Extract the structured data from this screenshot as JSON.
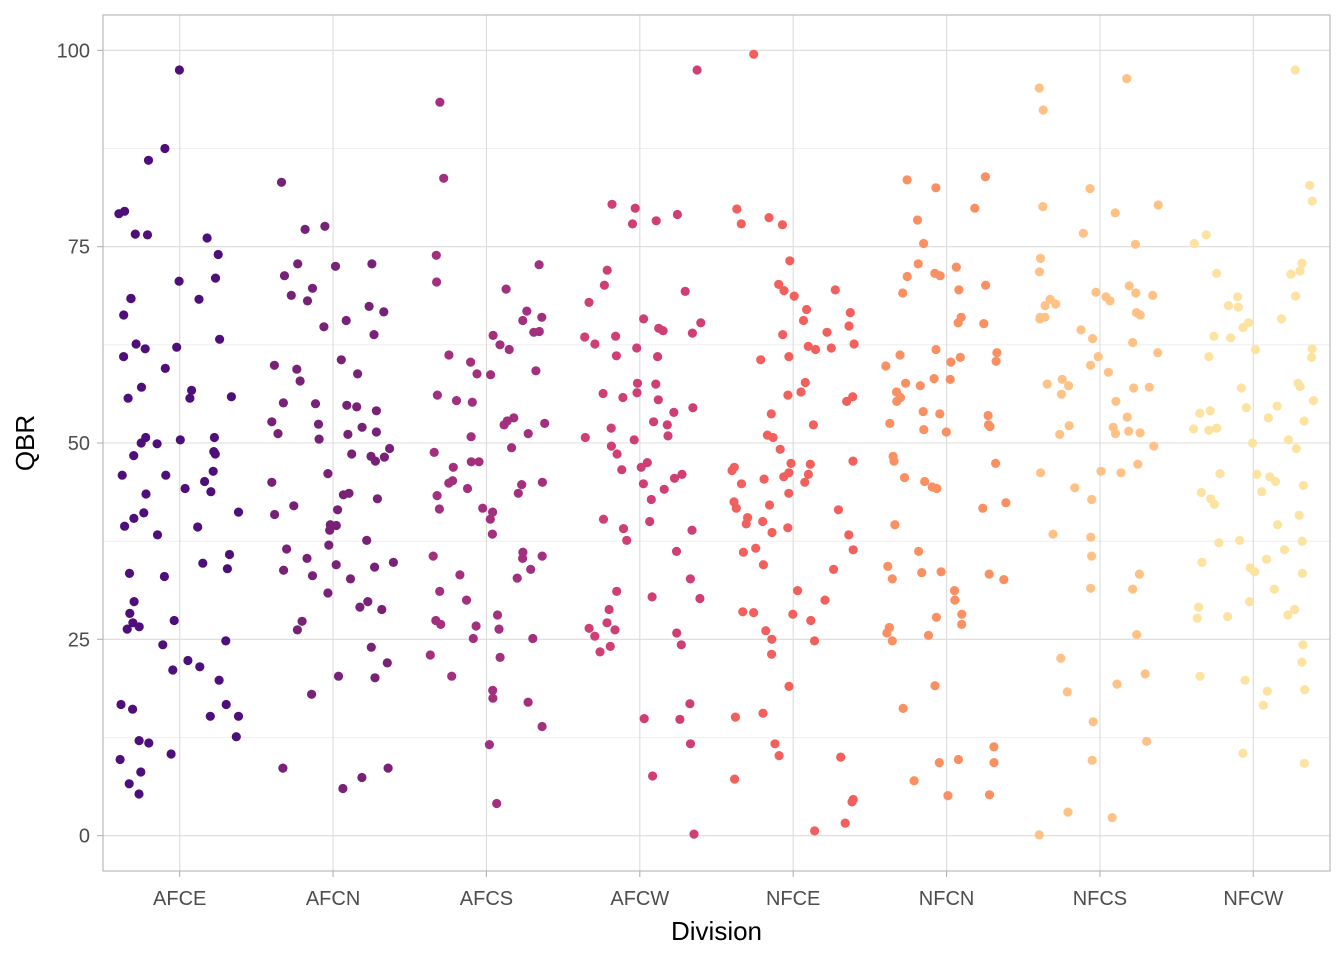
{
  "chart_data": {
    "type": "scatter",
    "jitter": true,
    "title": "",
    "xlabel": "Division",
    "ylabel": "QBR",
    "categories": [
      "AFCE",
      "AFCN",
      "AFCS",
      "AFCW",
      "NFCE",
      "NFCN",
      "NFCS",
      "NFCW"
    ],
    "colors": [
      "#4f0f7b",
      "#772277",
      "#a3307e",
      "#cf3f76",
      "#f1605d",
      "#fa8f61",
      "#fec287",
      "#fde3a1"
    ],
    "ylim": [
      -4.5,
      104.5
    ],
    "yticks": [
      0,
      25,
      50,
      75,
      100
    ],
    "grid": true,
    "legend": "none",
    "series": [
      {
        "values": [
          97.5,
          87.5,
          86.0,
          79.5,
          79.2,
          76.6,
          76.1,
          76.5,
          74.0,
          71.0,
          70.6,
          68.4,
          68.4,
          68.3,
          66.3,
          63.2,
          62.6,
          62.2,
          62.0,
          61.0,
          59.5,
          57.1,
          56.7,
          55.9,
          55.7,
          55.7,
          50.7,
          50.7,
          50.4,
          50.0,
          49.9,
          48.9,
          48.6,
          48.4,
          46.4,
          45.9,
          45.9,
          45.1,
          44.2,
          43.8,
          43.5,
          41.2,
          41.1,
          40.4,
          39.4,
          39.3,
          38.3,
          35.8,
          34.7,
          34.0,
          33.0,
          33.4,
          29.8,
          28.3,
          27.4,
          27.1,
          26.6,
          26.3,
          24.8,
          24.3,
          22.3,
          21.5,
          21.1,
          19.8,
          16.7,
          16.7,
          16.1,
          15.2,
          15.2,
          12.6,
          12.1,
          11.8,
          10.4,
          9.7,
          8.1,
          6.6,
          5.3
        ]
      },
      {
        "values": [
          83.2,
          77.6,
          77.2,
          72.8,
          72.8,
          72.5,
          71.3,
          69.7,
          68.8,
          68.1,
          67.4,
          66.7,
          65.6,
          64.8,
          63.8,
          60.6,
          59.9,
          59.4,
          58.8,
          57.9,
          55.1,
          55.0,
          54.8,
          54.6,
          54.1,
          52.7,
          52.4,
          52.0,
          51.4,
          51.2,
          51.1,
          50.5,
          49.3,
          48.6,
          48.3,
          48.2,
          47.7,
          46.1,
          45.0,
          43.6,
          43.4,
          42.9,
          42.0,
          41.5,
          40.9,
          39.6,
          39.5,
          38.9,
          37.6,
          37.0,
          36.5,
          35.3,
          34.8,
          34.5,
          34.2,
          33.8,
          33.1,
          32.7,
          30.9,
          29.8,
          29.1,
          28.8,
          27.3,
          26.2,
          24.0,
          22.0,
          20.3,
          20.1,
          18.0,
          8.6,
          8.6,
          7.4,
          6.0
        ]
      },
      {
        "values": [
          93.4,
          83.7,
          73.9,
          72.7,
          70.5,
          69.6,
          66.8,
          66.0,
          65.6,
          64.2,
          64.1,
          63.7,
          62.5,
          61.9,
          61.2,
          60.3,
          59.2,
          58.8,
          58.7,
          56.1,
          55.4,
          55.2,
          53.2,
          52.8,
          52.5,
          52.3,
          51.2,
          50.8,
          49.4,
          48.8,
          47.6,
          47.6,
          46.9,
          45.2,
          45.0,
          44.9,
          44.7,
          44.2,
          43.6,
          43.3,
          41.7,
          41.6,
          41.2,
          40.3,
          38.4,
          36.1,
          35.6,
          35.6,
          35.3,
          33.9,
          33.2,
          32.8,
          31.1,
          30.0,
          28.1,
          27.4,
          26.9,
          26.7,
          26.3,
          25.1,
          25.1,
          23.0,
          22.7,
          20.3,
          18.5,
          17.5,
          17.0,
          13.9,
          11.6,
          4.1
        ]
      },
      {
        "values": [
          97.5,
          80.4,
          79.9,
          79.1,
          78.3,
          77.9,
          72.0,
          70.1,
          69.3,
          67.9,
          65.8,
          65.3,
          64.6,
          64.3,
          64.0,
          63.6,
          63.5,
          62.6,
          62.1,
          61.1,
          61.0,
          57.6,
          57.5,
          56.4,
          56.3,
          55.8,
          55.5,
          54.5,
          53.9,
          52.7,
          52.3,
          51.9,
          50.9,
          50.7,
          50.4,
          49.6,
          48.6,
          47.5,
          46.9,
          46.6,
          46.0,
          45.5,
          44.8,
          44.1,
          42.8,
          40.3,
          40.0,
          39.1,
          38.9,
          37.6,
          36.2,
          32.7,
          31.1,
          30.4,
          30.2,
          28.8,
          27.1,
          26.4,
          26.2,
          25.8,
          25.4,
          24.3,
          24.1,
          23.4,
          16.8,
          14.9,
          14.8,
          11.7,
          7.6,
          0.2
        ]
      },
      {
        "values": [
          99.5,
          79.8,
          78.7,
          77.9,
          77.8,
          73.2,
          70.2,
          69.5,
          69.4,
          68.7,
          67.0,
          66.6,
          65.6,
          64.9,
          64.1,
          63.8,
          62.6,
          62.3,
          62.1,
          61.9,
          61.0,
          60.6,
          57.7,
          56.5,
          56.1,
          55.9,
          55.3,
          53.7,
          52.3,
          51.0,
          50.7,
          49.2,
          47.7,
          47.4,
          47.3,
          46.9,
          46.5,
          46.2,
          46.0,
          45.7,
          45.4,
          45.0,
          44.8,
          43.6,
          42.5,
          42.1,
          41.7,
          41.5,
          40.5,
          40.0,
          39.7,
          39.2,
          38.6,
          38.3,
          36.6,
          36.4,
          36.1,
          34.5,
          33.9,
          31.2,
          30.0,
          28.5,
          28.4,
          28.2,
          27.4,
          26.1,
          25.0,
          24.8,
          23.1,
          19.0,
          15.6,
          15.1,
          11.7,
          10.2,
          10.0,
          7.2,
          4.6,
          4.3,
          1.6,
          0.6
        ]
      },
      {
        "values": [
          83.9,
          83.5,
          82.5,
          79.9,
          78.4,
          75.4,
          72.8,
          72.4,
          71.6,
          71.3,
          71.2,
          70.1,
          69.5,
          69.1,
          66.0,
          65.3,
          65.2,
          61.9,
          61.5,
          61.2,
          60.9,
          60.4,
          60.3,
          59.8,
          58.2,
          58.1,
          57.6,
          57.3,
          56.5,
          55.8,
          55.3,
          54.0,
          53.7,
          53.5,
          52.5,
          52.3,
          52.1,
          51.7,
          51.4,
          48.3,
          47.7,
          47.4,
          45.6,
          45.1,
          44.4,
          44.2,
          42.4,
          41.7,
          39.6,
          36.2,
          34.3,
          33.6,
          33.5,
          33.3,
          32.7,
          32.6,
          31.2,
          30.0,
          28.2,
          27.8,
          26.9,
          26.5,
          26.5,
          25.8,
          25.5,
          24.8,
          19.1,
          16.2,
          11.3,
          9.7,
          9.3,
          9.3,
          7.0,
          5.2,
          5.1
        ]
      },
      {
        "values": [
          96.4,
          95.2,
          92.4,
          82.4,
          80.3,
          80.1,
          79.3,
          76.7,
          75.3,
          73.5,
          71.8,
          70.0,
          69.1,
          69.2,
          68.8,
          68.6,
          68.3,
          68.1,
          67.7,
          67.5,
          66.6,
          66.3,
          66.0,
          66.0,
          65.8,
          64.4,
          63.3,
          62.8,
          61.5,
          61.0,
          59.9,
          59.0,
          58.1,
          57.5,
          57.3,
          57.1,
          57.0,
          56.2,
          55.3,
          53.3,
          52.2,
          52.0,
          51.5,
          51.3,
          51.2,
          51.1,
          49.6,
          47.3,
          46.4,
          46.2,
          46.2,
          44.3,
          42.8,
          38.4,
          38.0,
          35.6,
          33.3,
          31.5,
          31.4,
          25.6,
          22.6,
          20.6,
          19.3,
          18.3,
          14.5,
          12.0,
          9.6,
          3.0,
          2.3,
          0.1
        ]
      },
      {
        "values": [
          97.5,
          82.8,
          80.8,
          76.5,
          75.4,
          72.9,
          71.9,
          71.6,
          71.5,
          68.7,
          68.6,
          67.5,
          67.3,
          65.8,
          65.3,
          64.7,
          63.6,
          63.4,
          62.0,
          61.9,
          61.0,
          60.9,
          57.6,
          57.2,
          57.0,
          55.4,
          54.7,
          54.5,
          54.1,
          53.8,
          53.2,
          52.8,
          51.9,
          51.8,
          51.6,
          50.4,
          50.0,
          49.3,
          46.1,
          46.0,
          45.7,
          45.1,
          44.6,
          43.8,
          43.7,
          42.9,
          42.2,
          40.8,
          39.6,
          37.6,
          37.5,
          37.3,
          36.4,
          35.2,
          34.8,
          34.1,
          33.6,
          33.4,
          31.4,
          29.8,
          29.1,
          28.8,
          28.1,
          27.9,
          27.7,
          24.3,
          22.1,
          20.3,
          19.8,
          18.6,
          18.4,
          16.6,
          10.5,
          9.2
        ]
      }
    ]
  }
}
